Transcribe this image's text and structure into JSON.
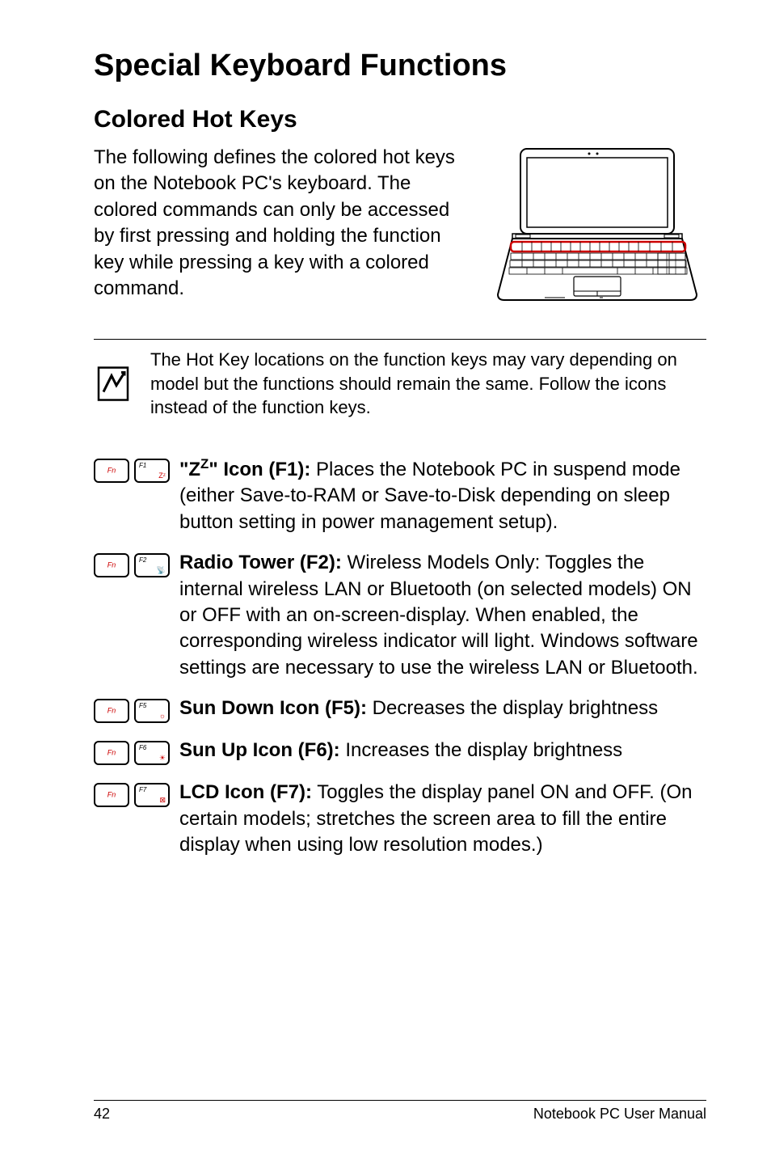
{
  "title": "Special Keyboard Functions",
  "subtitle": "Colored Hot Keys",
  "intro": "The following defines the colored hot keys on the Notebook PC's keyboard. The colored commands can only be accessed by first pressing and holding the function key while pressing a key with a colored command.",
  "note": "The Hot Key locations on the function keys may vary depending on model but the functions should remain the same. Follow the icons instead of the function keys.",
  "functions": [
    {
      "key2_label": "F1",
      "key2_icon": "Zᶻ",
      "bold_html": "\"Z<span class=\"sup\">Z</span>\" Icon (F1):",
      "text": " Places the Notebook PC in suspend mode (either Save-to-RAM or Save-to-Disk depending on sleep button setting in power management setup)."
    },
    {
      "key2_label": "F2",
      "key2_icon": "📡",
      "bold_html": "Radio Tower (F2):",
      "text": " Wireless Models Only: Toggles the internal wireless LAN or Bluetooth (on selected models) ON or OFF with an on-screen-display. When enabled, the corresponding wireless indicator will light. Windows software settings are necessary to use the wireless LAN or Bluetooth."
    },
    {
      "key2_label": "F5",
      "key2_icon": "☼",
      "bold_html": "Sun Down Icon (F5):",
      "text": " Decreases the display brightness"
    },
    {
      "key2_label": "F6",
      "key2_icon": "☀",
      "bold_html": "Sun Up Icon (F6):",
      "text": " Increases the display brightness"
    },
    {
      "key2_label": "F7",
      "key2_icon": "⊠",
      "bold_html": "LCD Icon (F7):",
      "text": " Toggles the display panel ON and OFF. (On certain models; stretches the screen area to fill the entire display when using low resolution modes.)"
    }
  ],
  "footer": {
    "page": "42",
    "label": "Notebook PC User Manual"
  },
  "colors": {
    "text": "#000000",
    "accent_red": "#c00000",
    "rule": "#000000",
    "bg": "#ffffff"
  }
}
